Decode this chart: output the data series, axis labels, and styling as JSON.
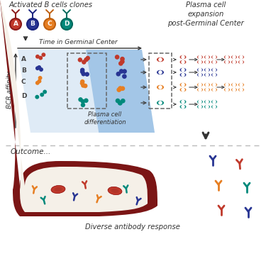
{
  "colors": {
    "red": "#C0392B",
    "darkred": "#8B1A1A",
    "blue": "#283593",
    "orange": "#E67E22",
    "teal": "#00897B",
    "blood_vessel_dark": "#7B1515",
    "blood_vessel_light": "#F5F0E8",
    "panel_light": "#C5DCF0",
    "panel_dark": "#5B9BD5",
    "axis_color": "#333333",
    "text_color": "#333333",
    "dashed_color": "#666666"
  },
  "top_left_label": "Activated B cells clones",
  "top_right_label": "Plasma cell\nexpansion\npost-Germinal Center",
  "y_axis_label": "BCR affinity",
  "x_axis_label": "Time in Germinal Center",
  "clone_letters": [
    "A",
    "B",
    "C",
    "D"
  ],
  "pc_diff_label": "Plasma cell\ndifferentiation",
  "outcome_label": "Outcome...",
  "antibody_label": "Diverse antibody response"
}
